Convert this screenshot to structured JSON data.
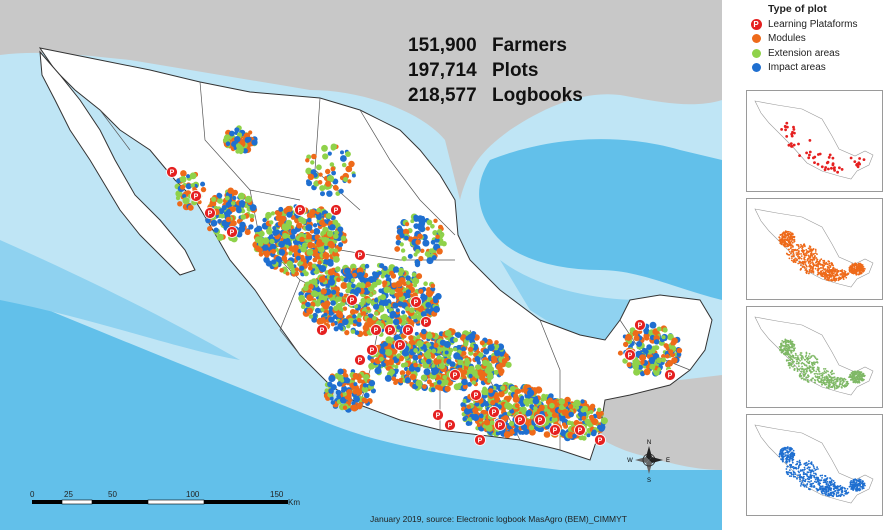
{
  "stats": [
    {
      "value": "151,900",
      "label": "Farmers"
    },
    {
      "value": "197,714",
      "label": "Plots"
    },
    {
      "value": "218,577",
      "label": "Logbooks"
    }
  ],
  "legend": {
    "title": "Type of plot",
    "items": [
      {
        "label": "Learning Plataforms",
        "color": "#e52020",
        "icon": "p-marker-icon"
      },
      {
        "label": "Modules",
        "color": "#ee6a1a",
        "icon": "dot-icon"
      },
      {
        "label": "Extension areas",
        "color": "#8fd24a",
        "icon": "dot-icon"
      },
      {
        "label": "Impact areas",
        "color": "#1f6fd0",
        "icon": "dot-icon"
      }
    ]
  },
  "scale_bar": {
    "labels": [
      "0",
      "25",
      "50",
      "100",
      "150"
    ],
    "unit": "Km"
  },
  "compass": {
    "n": "N",
    "s": "S",
    "e": "E",
    "w": "W"
  },
  "p_marker_letter": "P",
  "source": "January 2019, source: Electronic logbook MasAgro (BEM)_CIMMYT",
  "colors": {
    "ocean_deep": "#62c0ea",
    "ocean_mid": "#8fd2f0",
    "ocean_shallow": "#bfe5f5",
    "land_mexico": "#ffffff",
    "land_other": "#c8c8c8",
    "thumb_red": "#e52020",
    "thumb_orange": "#ee6a1a",
    "thumb_green": "#7fb866",
    "thumb_blue": "#1f6fd0"
  }
}
